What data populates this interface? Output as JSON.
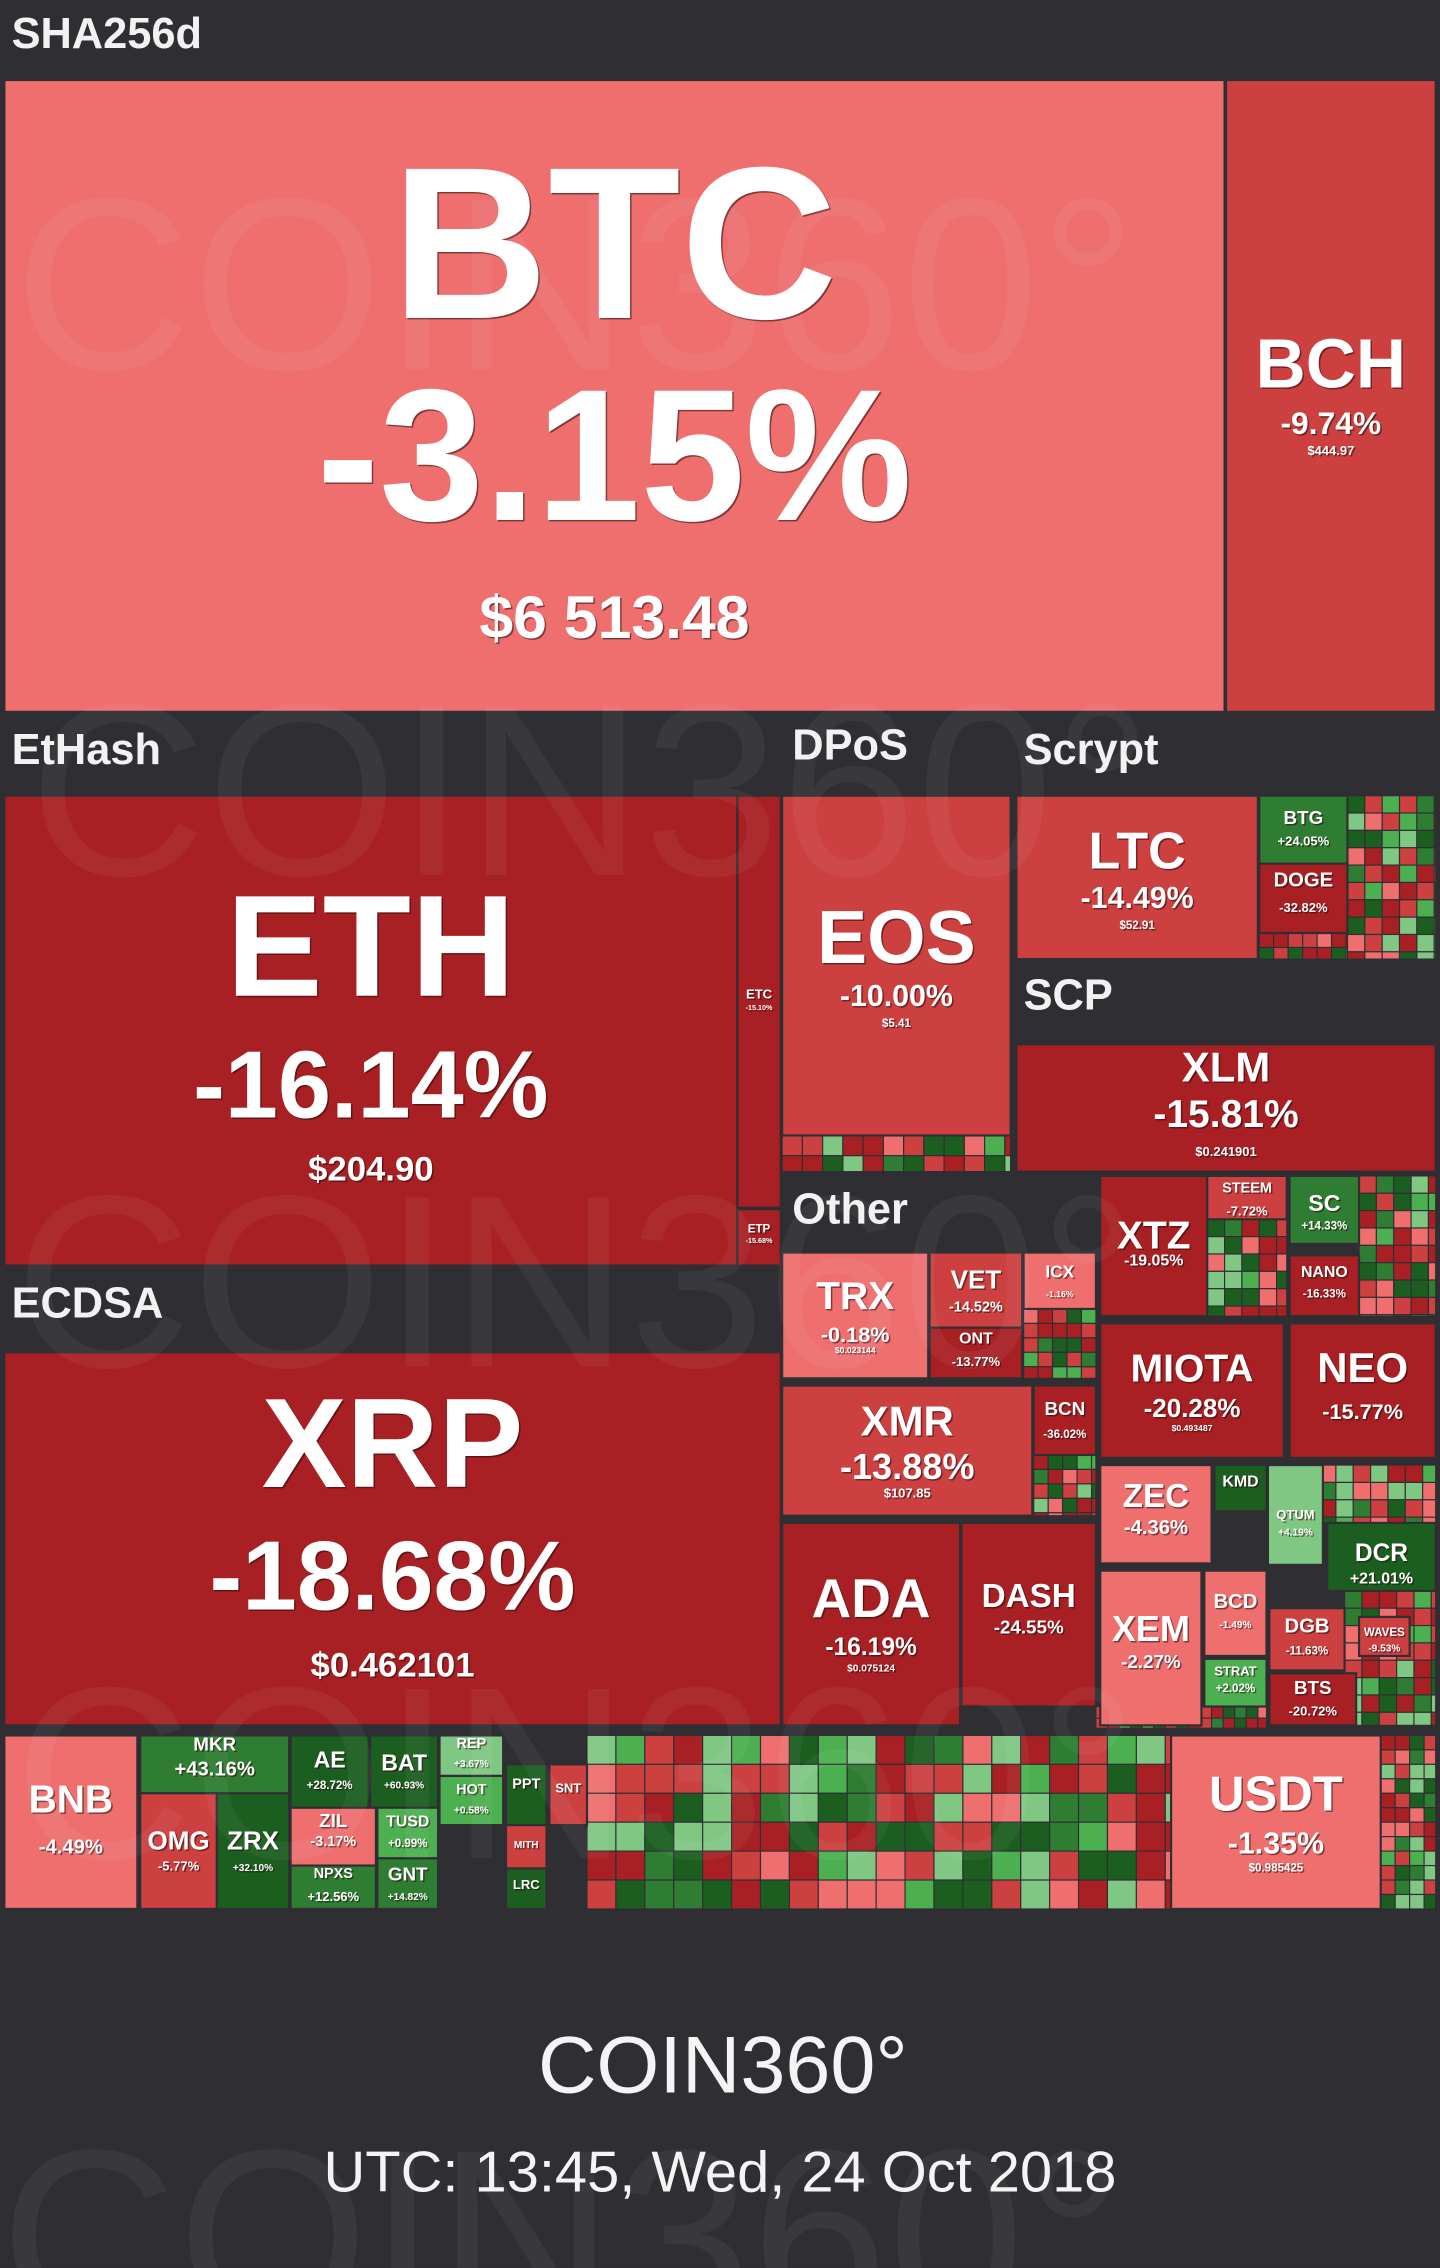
{
  "group_labels": [
    "SHA256d",
    "EtHash",
    "DPoS",
    "Scrypt",
    "SCP",
    "Other",
    "ECDSA"
  ],
  "tiles": [
    {
      "symbol": "BTC",
      "change": "-3.15%",
      "price": "$6 513.48"
    },
    {
      "symbol": "BCH",
      "change": "-9.74%",
      "price": "$444.97"
    },
    {
      "symbol": "ETH",
      "change": "-16.14%",
      "price": "$204.90"
    },
    {
      "symbol": "ETC",
      "change": "-15.10%"
    },
    {
      "symbol": "ETP",
      "change": "-15.68%"
    },
    {
      "symbol": "EOS",
      "change": "-10.00%",
      "price": "$5.41"
    },
    {
      "symbol": "LTC",
      "change": "-14.49%",
      "price": "$52.91"
    },
    {
      "symbol": "BTG",
      "change": "+24.05%"
    },
    {
      "symbol": "DOGE",
      "change": "-32.82%"
    },
    {
      "symbol": "XLM",
      "change": "-15.81%",
      "price": "$0.241901"
    },
    {
      "symbol": "TRX",
      "change": "-0.18%",
      "price": "$0.023144"
    },
    {
      "symbol": "VET",
      "change": "-14.52%"
    },
    {
      "symbol": "ICX",
      "change": "-1.16%"
    },
    {
      "symbol": "ONT",
      "change": "-13.77%"
    },
    {
      "symbol": "XMR",
      "change": "-13.88%",
      "price": "$107.85"
    },
    {
      "symbol": "BCN",
      "change": "-36.02%"
    },
    {
      "symbol": "ADA",
      "change": "-16.19%",
      "price": "$0.075124"
    },
    {
      "symbol": "DASH",
      "change": "-24.55%"
    },
    {
      "symbol": "XTZ",
      "change": "-19.05%"
    },
    {
      "symbol": "STEEM",
      "change": "-7.72%"
    },
    {
      "symbol": "SC",
      "change": "+14.33%"
    },
    {
      "symbol": "NANO",
      "change": "-16.33%"
    },
    {
      "symbol": "MIOTA",
      "change": "-20.28%",
      "price": "$0.493487"
    },
    {
      "symbol": "NEO",
      "change": "-15.77%"
    },
    {
      "symbol": "ZEC",
      "change": "-4.36%"
    },
    {
      "symbol": "KMD"
    },
    {
      "symbol": "QTUM",
      "change": "+4.19%"
    },
    {
      "symbol": "DCR",
      "change": "+21.01%"
    },
    {
      "symbol": "XEM",
      "change": "-2.27%"
    },
    {
      "symbol": "BCD",
      "change": "-1.49%"
    },
    {
      "symbol": "STRAT",
      "change": "+2.02%"
    },
    {
      "symbol": "DGB",
      "change": "-11.63%"
    },
    {
      "symbol": "WAVES",
      "change": "-9.53%"
    },
    {
      "symbol": "BTS",
      "change": "-20.72%"
    },
    {
      "symbol": "XRP",
      "change": "-18.68%",
      "price": "$0.462101"
    },
    {
      "symbol": "BNB",
      "change": "-4.49%"
    },
    {
      "symbol": "MKR",
      "change": "+43.16%"
    },
    {
      "symbol": "OMG",
      "change": "-5.77%"
    },
    {
      "symbol": "ZRX",
      "change": "+32.10%"
    },
    {
      "symbol": "AE",
      "change": "+28.72%"
    },
    {
      "symbol": "BAT",
      "change": "+60.93%"
    },
    {
      "symbol": "ZIL",
      "change": "-3.17%"
    },
    {
      "symbol": "NPXS",
      "change": "+12.56%"
    },
    {
      "symbol": "TUSD",
      "change": "+0.99%"
    },
    {
      "symbol": "GNT",
      "change": "+14.82%"
    },
    {
      "symbol": "REP",
      "change": "+3.67%"
    },
    {
      "symbol": "HOT",
      "change": "+0.58%"
    },
    {
      "symbol": "PPT"
    },
    {
      "symbol": "SNT"
    },
    {
      "symbol": "MITH"
    },
    {
      "symbol": "LRC"
    },
    {
      "symbol": "USDT",
      "change": "-1.35%",
      "price": "$0.985425"
    }
  ],
  "watermark": "COIN360°",
  "footer": {
    "brand": "COIN360°",
    "timestamp": "UTC: 13:45, Wed, 24 Oct 2018"
  }
}
